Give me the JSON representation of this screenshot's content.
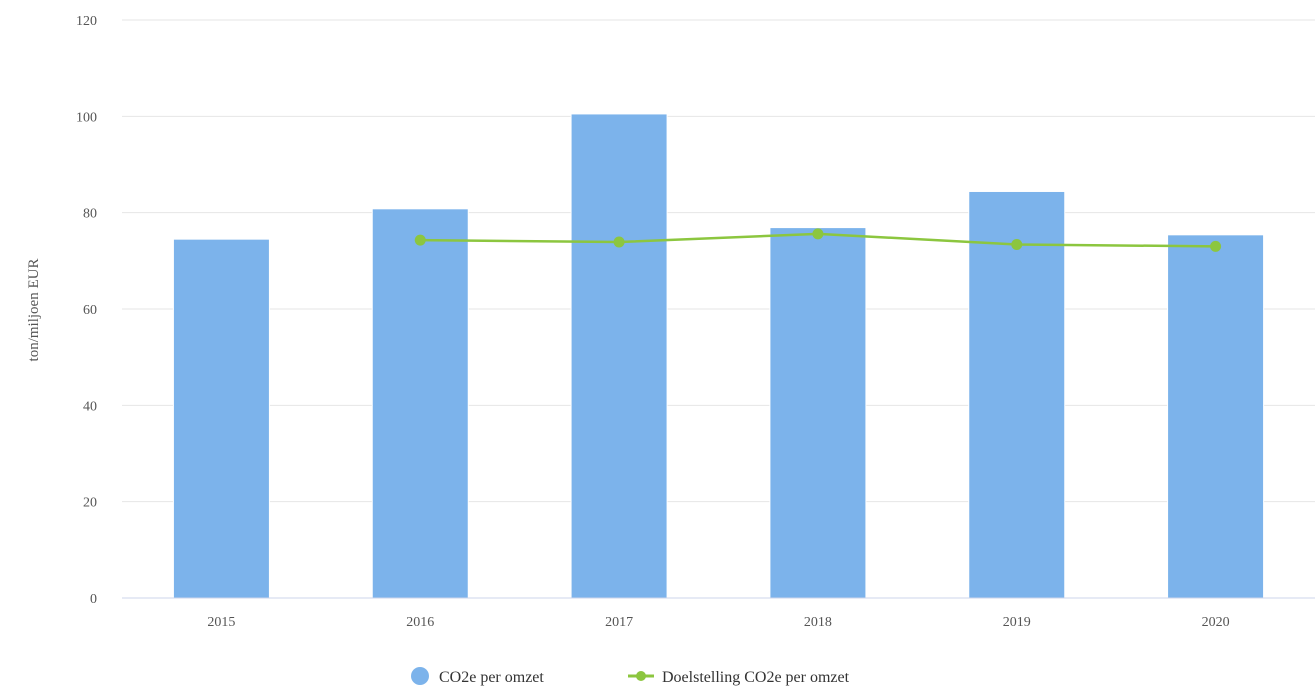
{
  "chart_data": {
    "type": "bar",
    "categories": [
      "2015",
      "2016",
      "2017",
      "2018",
      "2019",
      "2020"
    ],
    "series": [
      {
        "name": "CO2e per omzet",
        "kind": "bar",
        "color": "#7cb3eb",
        "values": [
          74.5,
          80.8,
          100.5,
          76.9,
          84.4,
          75.4
        ]
      },
      {
        "name": "Doelstelling CO2e per omzet",
        "kind": "line",
        "color": "#8cc63f",
        "values": [
          null,
          74.3,
          73.9,
          75.6,
          73.4,
          73.0
        ]
      }
    ],
    "xlabel": "",
    "ylabel": "ton/miljoen EUR",
    "ylim": [
      0,
      120
    ],
    "yticks": [
      "0",
      "20",
      "40",
      "60",
      "80",
      "100",
      "120"
    ],
    "grid": true,
    "legend_position": "bottom-center"
  }
}
